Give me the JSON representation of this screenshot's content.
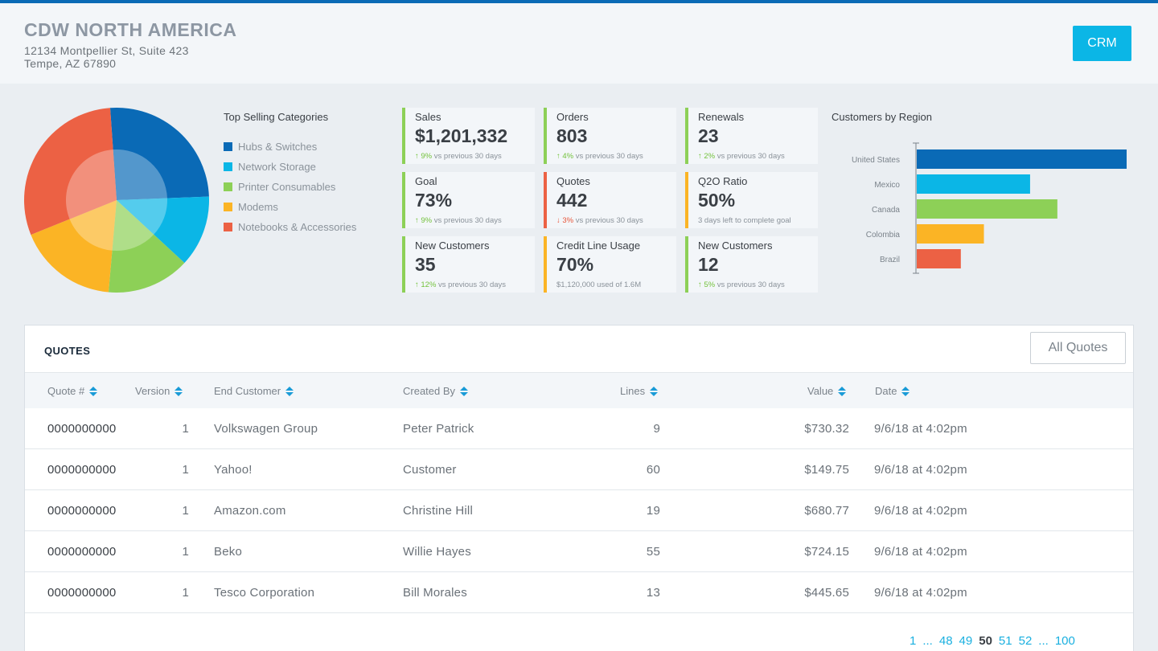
{
  "header": {
    "company": "CDW NORTH AMERICA",
    "address_line1": "12134 Montpellier St, Suite 423",
    "address_line2": "Tempe, AZ 67890",
    "crm_label": "CRM"
  },
  "categories": {
    "title": "Top Selling Categories",
    "items": [
      {
        "label": "Hubs & Switches",
        "color": "#0a6ab6"
      },
      {
        "label": "Network Storage",
        "color": "#0bb6e6"
      },
      {
        "label": "Printer Consumables",
        "color": "#8dd057"
      },
      {
        "label": "Modems",
        "color": "#fbb425"
      },
      {
        "label": "Notebooks & Accessories",
        "color": "#ec6144"
      }
    ]
  },
  "chart_data": [
    {
      "type": "pie",
      "title": "Top Selling Categories",
      "categories": [
        "Hubs & Switches",
        "Network Storage",
        "Printer Consumables",
        "Modems",
        "Notebooks & Accessories"
      ],
      "values": [
        25.5,
        12.5,
        14.5,
        17.5,
        30
      ],
      "colors": [
        "#0a6ab6",
        "#0bb6e6",
        "#8dd057",
        "#fbb425",
        "#ec6144"
      ],
      "start_angle_deg": -94
    },
    {
      "type": "bar",
      "orientation": "horizontal",
      "title": "Customers by Region",
      "categories": [
        "United States",
        "Mexico",
        "Canada",
        "Colombia",
        "Brazil"
      ],
      "values": [
        100,
        54,
        67,
        32,
        21
      ],
      "colors": [
        "#0a6ab6",
        "#0bb6e6",
        "#8dd057",
        "#fbb425",
        "#ec6144"
      ],
      "xlim": [
        0,
        100
      ]
    }
  ],
  "kpis": [
    {
      "label": "Sales",
      "value": "$1,201,332",
      "pct": "9%",
      "dir": "up",
      "note": "vs previous 30 days",
      "color": "#8dd057"
    },
    {
      "label": "Orders",
      "value": "803",
      "pct": "4%",
      "dir": "up",
      "note": "vs previous 30 days",
      "color": "#8dd057"
    },
    {
      "label": "Renewals",
      "value": "23",
      "pct": "2%",
      "dir": "up",
      "note": "vs previous 30 days",
      "color": "#8dd057"
    },
    {
      "label": "Goal",
      "value": "73%",
      "pct": "9%",
      "dir": "up",
      "note": "vs previous 30 days",
      "color": "#8dd057"
    },
    {
      "label": "Quotes",
      "value": "442",
      "pct": "3%",
      "dir": "down",
      "note": "vs previous 30 days",
      "color": "#ec6144"
    },
    {
      "label": "Q2O Ratio",
      "value": "50%",
      "pct": "",
      "dir": "",
      "note": "3 days left to complete goal",
      "color": "#fbb425"
    },
    {
      "label": "New Customers",
      "value": "35",
      "pct": "12%",
      "dir": "up",
      "note": "vs previous 30 days",
      "color": "#8dd057"
    },
    {
      "label": "Credit Line Usage",
      "value": "70%",
      "pct": "",
      "dir": "",
      "note": "$1,120,000 used of 1.6M",
      "color": "#fbb425"
    },
    {
      "label": "New Customers",
      "value": "12",
      "pct": "5%",
      "dir": "up",
      "note": "vs previous 30 days",
      "color": "#8dd057"
    }
  ],
  "quotes": {
    "title": "QUOTES",
    "all_quotes_label": "All Quotes",
    "columns": [
      "Quote #",
      "Version",
      "End Customer",
      "Created By",
      "Lines",
      "Value",
      "Date"
    ],
    "rows": [
      {
        "quote": "0000000000",
        "version": "1",
        "customer": "Volkswagen Group",
        "created_by": "Peter Patrick",
        "lines": "9",
        "value": "$730.32",
        "date": "9/6/18 at 4:02pm"
      },
      {
        "quote": "0000000000",
        "version": "1",
        "customer": "Yahoo!",
        "created_by": "Customer",
        "lines": "60",
        "value": "$149.75",
        "date": "9/6/18 at 4:02pm"
      },
      {
        "quote": "0000000000",
        "version": "1",
        "customer": "Amazon.com",
        "created_by": "Christine Hill",
        "lines": "19",
        "value": "$680.77",
        "date": "9/6/18 at 4:02pm"
      },
      {
        "quote": "0000000000",
        "version": "1",
        "customer": "Beko",
        "created_by": "Willie Hayes",
        "lines": "55",
        "value": "$724.15",
        "date": "9/6/18 at 4:02pm"
      },
      {
        "quote": "0000000000",
        "version": "1",
        "customer": "Tesco Corporation",
        "created_by": "Bill Morales",
        "lines": "13",
        "value": "$445.65",
        "date": "9/6/18 at 4:02pm"
      }
    ]
  },
  "pagination": {
    "items": [
      "1",
      "...",
      "48",
      "49",
      "50",
      "51",
      "52",
      "...",
      "100"
    ],
    "current": "50"
  }
}
